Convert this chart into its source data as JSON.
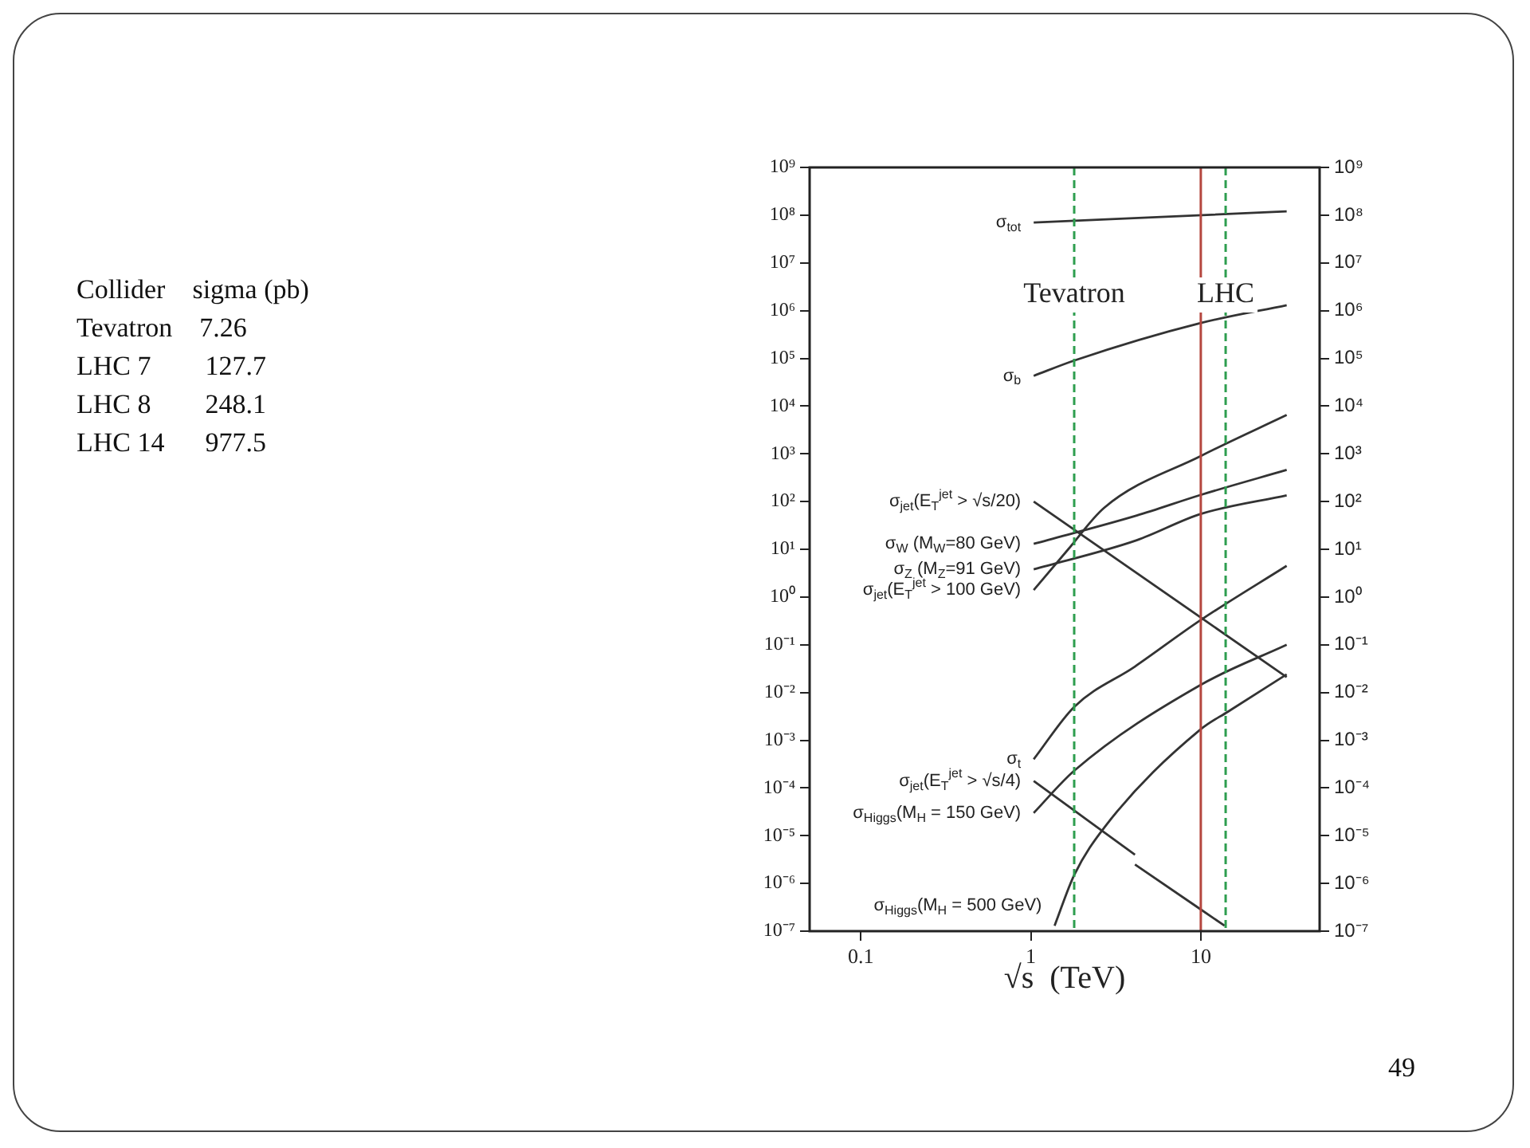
{
  "chart_data": {
    "type": "line",
    "xlabel": "√s  (TeV)",
    "log": "xy",
    "xlim": [
      0.05,
      50
    ],
    "xticks": [
      0.1,
      1,
      10
    ],
    "ylim": [
      1e-07,
      1000000000.0
    ],
    "yticks": [
      {
        "value": 1e-07,
        "label": "10⁻⁷"
      },
      {
        "value": 1e-06,
        "label": "10⁻⁶"
      },
      {
        "value": 1e-05,
        "label": "10⁻⁵"
      },
      {
        "value": 0.0001,
        "label": "10⁻⁴"
      },
      {
        "value": 0.001,
        "label": "10⁻³"
      },
      {
        "value": 0.01,
        "label": "10⁻²"
      },
      {
        "value": 0.1,
        "label": "10⁻¹"
      },
      {
        "value": 1,
        "label": "10⁰"
      },
      {
        "value": 10,
        "label": "10¹"
      },
      {
        "value": 100,
        "label": "10²"
      },
      {
        "value": 1000,
        "label": "10³"
      },
      {
        "value": 10000.0,
        "label": "10⁴"
      },
      {
        "value": 100000.0,
        "label": "10⁵"
      },
      {
        "value": 1000000.0,
        "label": "10⁶"
      },
      {
        "value": 10000000.0,
        "label": "10⁷"
      },
      {
        "value": 100000000.0,
        "label": "10⁸"
      },
      {
        "value": 1000000000.0,
        "label": "10⁹"
      }
    ],
    "marker": "none",
    "series": [
      {
        "name": "σ$_{tot}$",
        "color": "#333333",
        "x": [
          1.04,
          32
        ],
        "values": [
          70000000.0,
          120000000.0
        ]
      },
      {
        "name": "σ$_{b}$",
        "color": "#333333",
        "x": [
          1.04,
          1.8,
          10,
          32
        ],
        "values": [
          43000.0,
          90000.0,
          550000.0,
          1300000.0
        ]
      },
      {
        "name": "σ$_{jet}$(E$_{T}$$^{jet}$ > √s/20)",
        "color": "#333333",
        "x": [
          1.04,
          32
        ],
        "values": [
          100,
          0.021
        ]
      },
      {
        "name": "σ$_{W}$ (M$_{W}$=80 GeV)",
        "color": "#333333",
        "x": [
          1.04,
          4.2,
          10,
          32
        ],
        "values": [
          13,
          51,
          138,
          460
        ]
      },
      {
        "name": "σ$_{Z}$ (M$_{Z}$=91 GeV)",
        "color": "#333333",
        "x": [
          1.04,
          4.2,
          10,
          32
        ],
        "values": [
          3.8,
          15.5,
          55,
          135
        ]
      },
      {
        "name": "σ$_{jet}$(E$_{T}$$^{jet}$ > 100 GeV)",
        "color": "#333333",
        "x": [
          1.04,
          1.66,
          2.7,
          10,
          32
        ],
        "values": [
          1.4,
          10,
          74,
          900,
          6500
        ]
      },
      {
        "name": "σ$_{t}$",
        "color": "#333333",
        "x": [
          1.04,
          1.8,
          4.1,
          10,
          32
        ],
        "values": [
          0.0004,
          0.005,
          0.035,
          0.33,
          4.5
        ]
      },
      {
        "name": "σ$_{jet}$(E$_{T}$$^{jet}$ > √s/4)",
        "color": "#333333",
        "x": [
          1.04,
          4.1,
          null,
          4.1,
          13.8
        ],
        "values": [
          0.00014,
          4e-06,
          null,
          2.5e-06,
          1.3e-07
        ]
      },
      {
        "name": "σ$_{Higgs}$(M$_{H}$ = 150 GeV)",
        "color": "#333333",
        "x": [
          1.04,
          1.8,
          10,
          32
        ],
        "values": [
          3e-05,
          0.00023,
          0.0145,
          0.1
        ]
      },
      {
        "name": "σ$_{Higgs}$(M$_{H}$ = 500 GeV)",
        "color": "#333333",
        "x": [
          1.38,
          1.8,
          2.75,
          10,
          14.5,
          32
        ],
        "values": [
          1.3e-07,
          1.5e-06,
          1.6e-05,
          0.0017,
          0.004,
          0.024
        ]
      }
    ],
    "ref_lines": [
      {
        "axis": "x",
        "value": 1.8,
        "label": "Tevatron",
        "color": "#2e9e4f",
        "line_style": "dashed"
      },
      {
        "axis": "x",
        "value": 10,
        "label": null,
        "color": "#b5463f",
        "line_style": "solid"
      },
      {
        "axis": "x",
        "value": 14,
        "label": "LHC",
        "color": "#2e9e4f",
        "line_style": "dashed"
      }
    ],
    "annotations": [
      "Collider    sigma (pb)",
      "Tevatron    7.26",
      "LHC 7        127.7",
      "LHC 8        248.1",
      "LHC 14      977.5",
      "49"
    ]
  }
}
